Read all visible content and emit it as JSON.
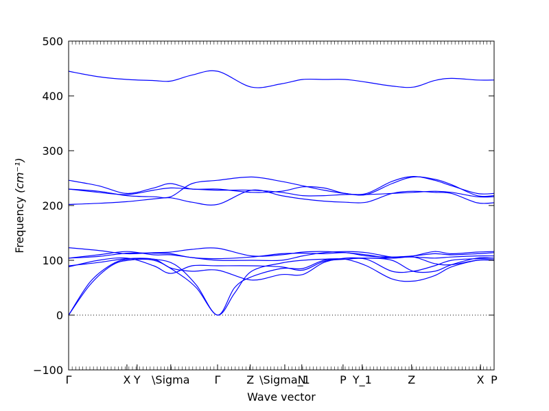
{
  "chart_data": {
    "type": "line",
    "title": "",
    "xlabel": "Wave vector",
    "ylabel": "Frequency",
    "ylabel_unit": "(cm⁻¹)",
    "ylim": [
      -100,
      500
    ],
    "yticks": [
      -100,
      0,
      100,
      200,
      300,
      400,
      500
    ],
    "xlim": [
      0,
      1
    ],
    "zero_line": true,
    "grid": false,
    "color": "#0000ff",
    "kpoint_labels": [
      {
        "label": "Γ",
        "x": 0.0
      },
      {
        "label": "X",
        "x": 0.137
      },
      {
        "label": "Y",
        "x": 0.161
      },
      {
        "label": "\\Sigma",
        "x": 0.24
      },
      {
        "label": "Γ",
        "x": 0.35
      },
      {
        "label": "Z",
        "x": 0.427
      },
      {
        "label": "\\Sigma_1",
        "x": 0.508
      },
      {
        "label": "N",
        "x": 0.548
      },
      {
        "label": "P",
        "x": 0.645
      },
      {
        "label": "Y_1",
        "x": 0.69
      },
      {
        "label": "Z",
        "x": 0.806
      },
      {
        "label": "X",
        "x": 0.968
      },
      {
        "label": "P",
        "x": 1.0
      }
    ],
    "series": [
      {
        "values": [
          [
            0,
            0
          ],
          [
            0.05,
            55
          ],
          [
            0.1,
            90
          ],
          [
            0.14,
            100
          ],
          [
            0.2,
            100
          ],
          [
            0.25,
            80
          ],
          [
            0.3,
            50
          ],
          [
            0.35,
            0
          ],
          [
            0.39,
            40
          ],
          [
            0.43,
            80
          ],
          [
            0.5,
            95
          ],
          [
            0.55,
            100
          ],
          [
            0.6,
            102
          ],
          [
            0.65,
            102
          ],
          [
            0.7,
            90
          ],
          [
            0.76,
            66
          ],
          [
            0.81,
            62
          ],
          [
            0.86,
            72
          ],
          [
            0.9,
            88
          ],
          [
            0.96,
            100
          ],
          [
            1.0,
            101
          ]
        ]
      },
      {
        "values": [
          [
            0,
            0
          ],
          [
            0.05,
            60
          ],
          [
            0.1,
            92
          ],
          [
            0.14,
            102
          ],
          [
            0.2,
            102
          ],
          [
            0.25,
            92
          ],
          [
            0.3,
            55
          ],
          [
            0.35,
            0
          ],
          [
            0.39,
            50
          ],
          [
            0.43,
            70
          ],
          [
            0.5,
            85
          ],
          [
            0.55,
            85
          ],
          [
            0.6,
            100
          ],
          [
            0.65,
            102
          ],
          [
            0.7,
            102
          ],
          [
            0.76,
            80
          ],
          [
            0.81,
            80
          ],
          [
            0.86,
            90
          ],
          [
            0.9,
            100
          ],
          [
            0.96,
            103
          ],
          [
            1.0,
            104
          ]
        ]
      },
      {
        "values": [
          [
            0,
            88
          ],
          [
            0.07,
            100
          ],
          [
            0.137,
            104
          ],
          [
            0.2,
            90
          ],
          [
            0.24,
            76
          ],
          [
            0.29,
            90
          ],
          [
            0.35,
            90
          ],
          [
            0.43,
            90
          ],
          [
            0.5,
            88
          ],
          [
            0.55,
            82
          ],
          [
            0.6,
            98
          ],
          [
            0.65,
            102
          ],
          [
            0.7,
            104
          ],
          [
            0.76,
            100
          ],
          [
            0.81,
            80
          ],
          [
            0.86,
            80
          ],
          [
            0.9,
            92
          ],
          [
            0.96,
            104
          ],
          [
            1.0,
            104
          ]
        ]
      },
      {
        "values": [
          [
            0,
            90
          ],
          [
            0.07,
            96
          ],
          [
            0.137,
            103
          ],
          [
            0.2,
            102
          ],
          [
            0.24,
            86
          ],
          [
            0.29,
            80
          ],
          [
            0.35,
            82
          ],
          [
            0.43,
            64
          ],
          [
            0.5,
            74
          ],
          [
            0.55,
            74
          ],
          [
            0.6,
            96
          ],
          [
            0.65,
            104
          ],
          [
            0.7,
            104
          ],
          [
            0.76,
            104
          ],
          [
            0.81,
            106
          ],
          [
            0.86,
            94
          ],
          [
            0.9,
            92
          ],
          [
            0.96,
            100
          ],
          [
            1.0,
            100
          ]
        ]
      },
      {
        "values": [
          [
            0,
            104
          ],
          [
            0.07,
            107
          ],
          [
            0.137,
            113
          ],
          [
            0.2,
            113
          ],
          [
            0.24,
            112
          ],
          [
            0.29,
            105
          ],
          [
            0.35,
            103
          ],
          [
            0.43,
            106
          ],
          [
            0.5,
            112
          ],
          [
            0.55,
            113
          ],
          [
            0.6,
            112
          ],
          [
            0.65,
            114
          ],
          [
            0.7,
            108
          ],
          [
            0.76,
            106
          ],
          [
            0.81,
            108
          ],
          [
            0.86,
            112
          ],
          [
            0.9,
            110
          ],
          [
            0.96,
            112
          ],
          [
            1.0,
            114
          ]
        ]
      },
      {
        "values": [
          [
            0,
            123
          ],
          [
            0.07,
            118
          ],
          [
            0.137,
            112
          ],
          [
            0.2,
            114
          ],
          [
            0.24,
            115
          ],
          [
            0.29,
            120
          ],
          [
            0.35,
            122
          ],
          [
            0.43,
            108
          ],
          [
            0.5,
            110
          ],
          [
            0.55,
            115
          ],
          [
            0.6,
            116
          ],
          [
            0.65,
            114
          ],
          [
            0.7,
            110
          ],
          [
            0.76,
            104
          ],
          [
            0.81,
            108
          ],
          [
            0.86,
            116
          ],
          [
            0.9,
            112
          ],
          [
            0.96,
            115
          ],
          [
            1.0,
            116
          ]
        ]
      },
      {
        "values": [
          [
            0,
            104
          ],
          [
            0.07,
            110
          ],
          [
            0.137,
            116
          ],
          [
            0.2,
            110
          ],
          [
            0.24,
            110
          ],
          [
            0.29,
            105
          ],
          [
            0.35,
            100
          ],
          [
            0.43,
            100
          ],
          [
            0.5,
            100
          ],
          [
            0.55,
            108
          ],
          [
            0.6,
            114
          ],
          [
            0.65,
            116
          ],
          [
            0.7,
            114
          ],
          [
            0.76,
            106
          ],
          [
            0.81,
            106
          ],
          [
            0.86,
            104
          ],
          [
            0.9,
            106
          ],
          [
            0.96,
            108
          ],
          [
            1.0,
            108
          ]
        ]
      },
      {
        "values": [
          [
            0,
            202
          ],
          [
            0.07,
            204
          ],
          [
            0.137,
            207
          ],
          [
            0.2,
            212
          ],
          [
            0.24,
            214
          ],
          [
            0.29,
            206
          ],
          [
            0.35,
            202
          ],
          [
            0.43,
            228
          ],
          [
            0.5,
            218
          ],
          [
            0.55,
            212
          ],
          [
            0.6,
            208
          ],
          [
            0.65,
            206
          ],
          [
            0.7,
            206
          ],
          [
            0.76,
            222
          ],
          [
            0.81,
            226
          ],
          [
            0.86,
            224
          ],
          [
            0.9,
            222
          ],
          [
            0.96,
            205
          ],
          [
            1.0,
            205
          ]
        ]
      },
      {
        "values": [
          [
            0,
            230
          ],
          [
            0.07,
            226
          ],
          [
            0.137,
            218
          ],
          [
            0.2,
            216
          ],
          [
            0.24,
            216
          ],
          [
            0.29,
            240
          ],
          [
            0.35,
            246
          ],
          [
            0.43,
            252
          ],
          [
            0.5,
            244
          ],
          [
            0.55,
            236
          ],
          [
            0.6,
            228
          ],
          [
            0.65,
            222
          ],
          [
            0.7,
            220
          ],
          [
            0.76,
            240
          ],
          [
            0.81,
            252
          ],
          [
            0.86,
            248
          ],
          [
            0.9,
            238
          ],
          [
            0.96,
            218
          ],
          [
            1.0,
            218
          ]
        ]
      },
      {
        "values": [
          [
            0,
            246
          ],
          [
            0.07,
            236
          ],
          [
            0.137,
            222
          ],
          [
            0.2,
            232
          ],
          [
            0.24,
            240
          ],
          [
            0.29,
            230
          ],
          [
            0.35,
            230
          ],
          [
            0.43,
            224
          ],
          [
            0.5,
            226
          ],
          [
            0.55,
            234
          ],
          [
            0.6,
            232
          ],
          [
            0.65,
            222
          ],
          [
            0.7,
            222
          ],
          [
            0.76,
            244
          ],
          [
            0.81,
            253
          ],
          [
            0.86,
            246
          ],
          [
            0.9,
            236
          ],
          [
            0.96,
            222
          ],
          [
            1.0,
            222
          ]
        ]
      },
      {
        "values": [
          [
            0,
            230
          ],
          [
            0.07,
            224
          ],
          [
            0.137,
            220
          ],
          [
            0.2,
            228
          ],
          [
            0.24,
            232
          ],
          [
            0.29,
            230
          ],
          [
            0.35,
            228
          ],
          [
            0.43,
            228
          ],
          [
            0.5,
            224
          ],
          [
            0.55,
            218
          ],
          [
            0.6,
            218
          ],
          [
            0.65,
            220
          ],
          [
            0.7,
            220
          ],
          [
            0.76,
            222
          ],
          [
            0.81,
            224
          ],
          [
            0.86,
            226
          ],
          [
            0.9,
            224
          ],
          [
            0.96,
            216
          ],
          [
            1.0,
            216
          ]
        ]
      },
      {
        "values": [
          [
            0,
            445
          ],
          [
            0.07,
            435
          ],
          [
            0.137,
            430
          ],
          [
            0.2,
            428
          ],
          [
            0.24,
            427
          ],
          [
            0.29,
            438
          ],
          [
            0.35,
            445
          ],
          [
            0.43,
            416
          ],
          [
            0.5,
            422
          ],
          [
            0.55,
            430
          ],
          [
            0.6,
            430
          ],
          [
            0.65,
            430
          ],
          [
            0.7,
            425
          ],
          [
            0.76,
            418
          ],
          [
            0.81,
            416
          ],
          [
            0.86,
            428
          ],
          [
            0.9,
            432
          ],
          [
            0.96,
            429
          ],
          [
            1.0,
            429
          ]
        ]
      }
    ]
  }
}
